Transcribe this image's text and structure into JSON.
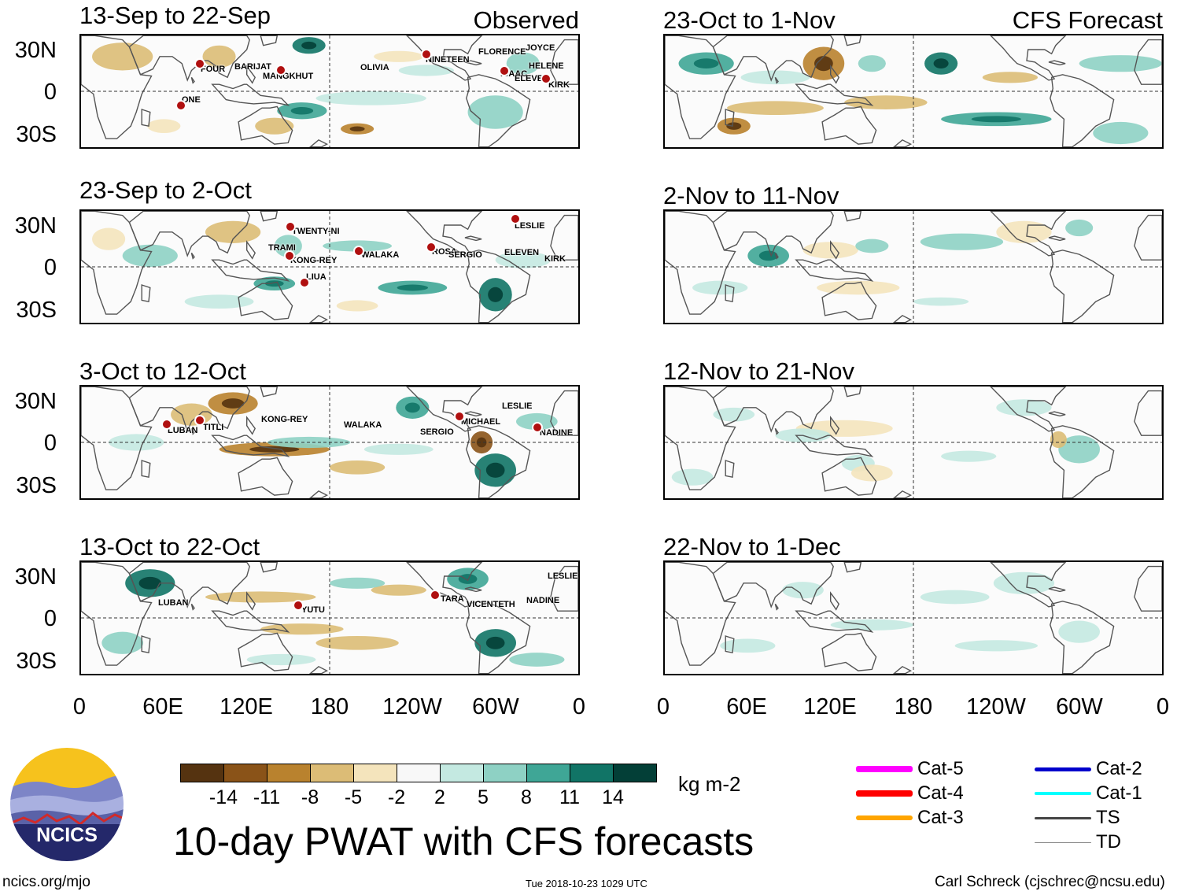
{
  "header": {
    "left_label": "Observed",
    "right_label": "CFS Forecast"
  },
  "observed_panels": [
    {
      "title": "13-Sep to 22-Sep",
      "storms": [
        "FOUR",
        "BARIJAT",
        "MANGKHUT",
        "OLIVIA",
        "NINETEEN",
        "FLORENCE",
        "JOYCE",
        "HELENE",
        "ISAAC",
        "ELEVEN",
        "KIRK",
        "ONE"
      ]
    },
    {
      "title": "23-Sep to 2-Oct",
      "storms": [
        "TWENTY-NI",
        "TRAMI",
        "KONG-REY",
        "WALAKA",
        "ROSA",
        "SERGIO",
        "LESLIE",
        "ELEVEN",
        "KIRK",
        "LIUA"
      ]
    },
    {
      "title": "3-Oct to 12-Oct",
      "storms": [
        "LUBAN",
        "TITLI",
        "KONG-REY",
        "WALAKA",
        "SERGIO",
        "MICHAEL",
        "LESLIE",
        "NADINE"
      ]
    },
    {
      "title": "13-Oct to 22-Oct",
      "storms": [
        "LUBAN",
        "YUTU",
        "TARA",
        "VICENTE",
        "TH",
        "NADINE",
        "LESLIE"
      ]
    }
  ],
  "forecast_panels": [
    {
      "title": "23-Oct to 1-Nov"
    },
    {
      "title": "2-Nov to 11-Nov"
    },
    {
      "title": "12-Nov to 21-Nov"
    },
    {
      "title": "22-Nov to 1-Dec"
    }
  ],
  "lat_labels": [
    "30N",
    "0",
    "30S"
  ],
  "lon_labels": [
    "0",
    "60E",
    "120E",
    "180",
    "120W",
    "60W",
    "0"
  ],
  "colorbar": {
    "colors": [
      "#553310",
      "#8a5318",
      "#b9822e",
      "#dcbc76",
      "#f4e4bc",
      "#f8f8f8",
      "#c4e9e1",
      "#8ed1c4",
      "#3fa696",
      "#117466",
      "#033f37"
    ],
    "ticks": [
      "-14",
      "-11",
      "-8",
      "-5",
      "-2",
      "2",
      "5",
      "8",
      "11",
      "14"
    ],
    "units": "kg m-2"
  },
  "main_title": "10-day PWAT with CFS forecasts",
  "logo_text": "NCICS",
  "legend": [
    {
      "label": "Cat-5",
      "color": "#ff00ff"
    },
    {
      "label": "Cat-4",
      "color": "#ff0000"
    },
    {
      "label": "Cat-3",
      "color": "#ffa500"
    },
    {
      "label": "Cat-2",
      "color": "#0000cc"
    },
    {
      "label": "Cat-1",
      "color": "#00ffff"
    },
    {
      "label": "TS",
      "color": "#444444"
    },
    {
      "label": "TD",
      "color": "#888888"
    }
  ],
  "footer": {
    "left": "ncics.org/mjo",
    "center": "Tue 2018-10-23 1029 UTC",
    "right": "Carl Schreck (cjschrec@ncsu.edu)"
  }
}
